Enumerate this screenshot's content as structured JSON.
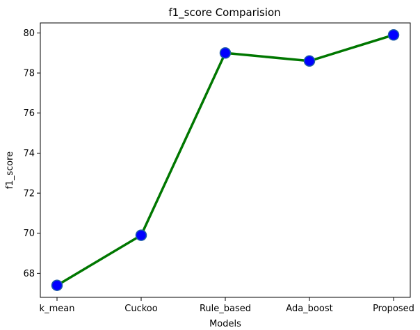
{
  "chart_data": {
    "type": "line",
    "title": "f1_score Comparision",
    "xlabel": "Models",
    "ylabel": "f1_score",
    "categories": [
      "k_mean",
      "Cuckoo",
      "Rule_based",
      "Ada_boost",
      "Proposed"
    ],
    "series": [
      {
        "values": [
          67.4,
          69.9,
          79.0,
          78.6,
          79.9
        ]
      }
    ],
    "ylim": [
      66.8,
      80.5
    ],
    "yticks": [
      68,
      70,
      72,
      74,
      76,
      78,
      80
    ],
    "grid": false,
    "colors": {
      "line": "#007700",
      "marker_fill": "#0000ff",
      "marker_edge": "#1f5fa8"
    }
  }
}
